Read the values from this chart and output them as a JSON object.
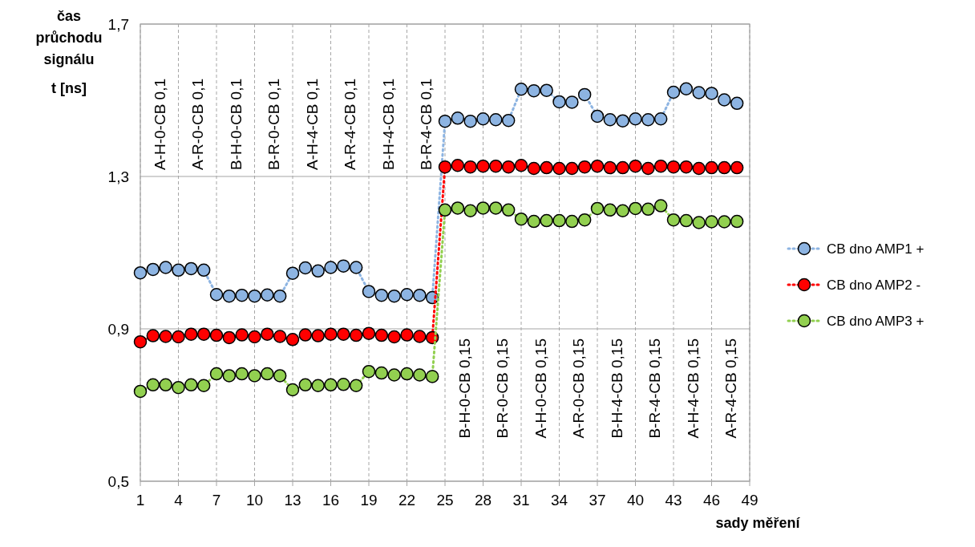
{
  "chart_data": {
    "type": "line",
    "ylabel": "čas\nprůchodu\nsignálu\nt [ns]",
    "xlabel": "sady měření",
    "x": [
      1,
      2,
      3,
      4,
      5,
      6,
      7,
      8,
      9,
      10,
      11,
      12,
      13,
      14,
      15,
      16,
      17,
      18,
      19,
      20,
      21,
      22,
      23,
      24,
      25,
      26,
      27,
      28,
      29,
      30,
      31,
      32,
      33,
      34,
      35,
      36,
      37,
      38,
      39,
      40,
      41,
      42,
      43,
      44,
      45,
      46,
      47,
      48
    ],
    "xlim": [
      1,
      49
    ],
    "xticks": [
      1,
      4,
      7,
      10,
      13,
      16,
      19,
      22,
      25,
      28,
      31,
      34,
      37,
      40,
      43,
      46,
      49
    ],
    "ylim": [
      0.5,
      1.7
    ],
    "yticks": [
      {
        "value": 0.5,
        "label": "0,5"
      },
      {
        "value": 0.9,
        "label": "0,9"
      },
      {
        "value": 1.3,
        "label": "1,3"
      },
      {
        "value": 1.7,
        "label": "1,7"
      }
    ],
    "grid": true,
    "legend": "right",
    "marker": "circle",
    "line_style": "dotted",
    "series": [
      {
        "name": "CB dno AMP1 +",
        "color": "#8db4e2",
        "values": [
          1.047,
          1.056,
          1.061,
          1.054,
          1.058,
          1.054,
          0.99,
          0.986,
          0.988,
          0.986,
          0.989,
          0.986,
          1.046,
          1.06,
          1.052,
          1.061,
          1.065,
          1.061,
          0.998,
          0.988,
          0.986,
          0.99,
          0.988,
          0.982,
          1.445,
          1.453,
          1.445,
          1.451,
          1.449,
          1.447,
          1.529,
          1.525,
          1.526,
          1.496,
          1.495,
          1.515,
          1.458,
          1.449,
          1.446,
          1.451,
          1.449,
          1.451,
          1.521,
          1.53,
          1.52,
          1.518,
          1.501,
          1.492
        ]
      },
      {
        "name": "CB dno AMP2 -",
        "color": "#ff0000",
        "values": [
          0.866,
          0.882,
          0.88,
          0.879,
          0.886,
          0.886,
          0.883,
          0.877,
          0.884,
          0.879,
          0.886,
          0.88,
          0.872,
          0.884,
          0.882,
          0.886,
          0.886,
          0.883,
          0.888,
          0.883,
          0.879,
          0.884,
          0.88,
          0.877,
          1.325,
          1.329,
          1.325,
          1.327,
          1.327,
          1.325,
          1.329,
          1.321,
          1.323,
          1.321,
          1.321,
          1.325,
          1.327,
          1.323,
          1.323,
          1.327,
          1.321,
          1.327,
          1.325,
          1.325,
          1.321,
          1.323,
          1.323,
          1.323
        ]
      },
      {
        "name": "CB dno AMP3 +",
        "color": "#92d050",
        "values": [
          0.736,
          0.753,
          0.753,
          0.746,
          0.753,
          0.751,
          0.782,
          0.777,
          0.782,
          0.777,
          0.782,
          0.777,
          0.74,
          0.753,
          0.751,
          0.753,
          0.754,
          0.751,
          0.788,
          0.784,
          0.779,
          0.782,
          0.779,
          0.775,
          1.212,
          1.217,
          1.21,
          1.217,
          1.217,
          1.212,
          1.188,
          1.182,
          1.184,
          1.184,
          1.182,
          1.186,
          1.216,
          1.212,
          1.21,
          1.216,
          1.214,
          1.223,
          1.186,
          1.184,
          1.179,
          1.181,
          1.181,
          1.182
        ]
      }
    ],
    "annotations": [
      "A-H-0-CB 0,1",
      "A-R-0-CB 0,1",
      "B-H-0-CB 0,1",
      "B-R-0-CB 0,1",
      "A-H-4-CB 0,1",
      "A-R-4-CB 0,1",
      "B-H-4-CB 0,1",
      "B-R-4-CB 0,1",
      "B-H-0-CB 0,15",
      "B-R-0-CB 0,15",
      "A-H-0-CB 0,15",
      "A-R-0-CB 0,15",
      "B-H-4-CB 0,15",
      "B-R-4-CB 0,15",
      "A-H-4-CB 0,15",
      "A-R-4-CB 0,15"
    ]
  }
}
